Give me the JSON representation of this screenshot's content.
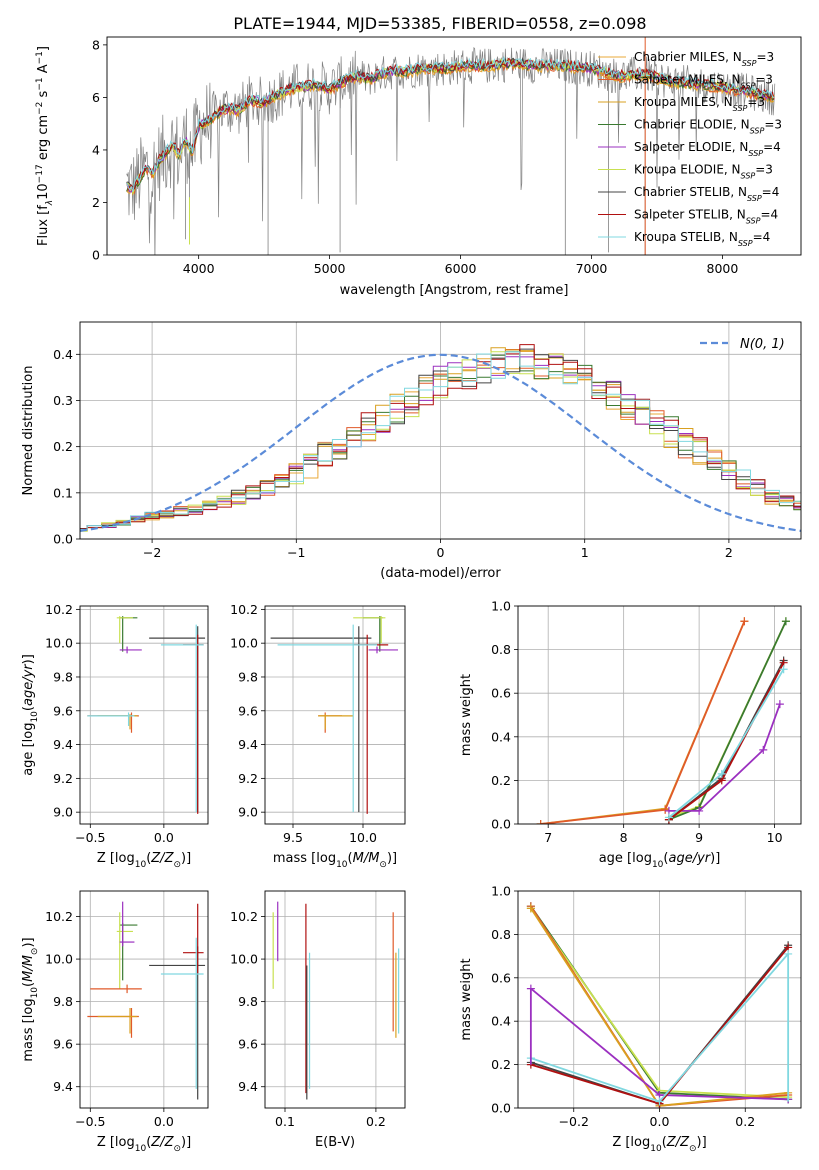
{
  "title": "PLATE=1944, MJD=53385, FIBERID=0558, z=0.098",
  "colors": {
    "Chabrier MILES": "#e8a838",
    "Salpeter MILES": "#e05a2a",
    "Kroupa MILES": "#d9a020",
    "Chabrier ELODIE": "#3a7a30",
    "Salpeter ELODIE": "#9b30c0",
    "Kroupa ELODIE": "#c8e050",
    "Chabrier STELIB": "#444444",
    "Salpeter STELIB": "#b01010",
    "Kroupa STELIB": "#80d8e0",
    "normal_curve": "#5b8bd8",
    "observed": "#808080"
  },
  "models": [
    {
      "name": "Chabrier MILES",
      "label": "Chabrier MILES, N",
      "nssp": "3"
    },
    {
      "name": "Salpeter MILES",
      "label": "Salpeter MILES, N",
      "nssp": "3"
    },
    {
      "name": "Kroupa MILES",
      "label": "Kroupa MILES, N",
      "nssp": "3"
    },
    {
      "name": "Chabrier ELODIE",
      "label": "Chabrier ELODIE, N",
      "nssp": "3"
    },
    {
      "name": "Salpeter ELODIE",
      "label": "Salpeter ELODIE, N",
      "nssp": "4"
    },
    {
      "name": "Kroupa ELODIE",
      "label": "Kroupa ELODIE, N",
      "nssp": "3"
    },
    {
      "name": "Chabrier STELIB",
      "label": "Chabrier STELIB, N",
      "nssp": "4"
    },
    {
      "name": "Salpeter STELIB",
      "label": "Salpeter STELIB, N",
      "nssp": "4"
    },
    {
      "name": "Kroupa STELIB",
      "label": "Kroupa STELIB, N",
      "nssp": "4"
    }
  ],
  "chart_data": [
    {
      "type": "line",
      "id": "spectrum",
      "xlabel": "wavelength [Angstrom, rest frame]",
      "ylabel": "Flux [f",
      "xlim": [
        3300,
        8600
      ],
      "ylim": [
        0,
        8.3
      ],
      "xticks": [
        4000,
        5000,
        6000,
        7000,
        8000
      ],
      "yticks": [
        0,
        2,
        4,
        6,
        8
      ],
      "model_curve": {
        "x": [
          3450,
          3500,
          3550,
          3600,
          3650,
          3700,
          3750,
          3800,
          3850,
          3900,
          3950,
          4000,
          4100,
          4200,
          4300,
          4400,
          4500,
          4600,
          4700,
          4800,
          4900,
          5000,
          5100,
          5200,
          5300,
          5400,
          5500,
          5600,
          5700,
          5800,
          5900,
          6000,
          6200,
          6400,
          6600,
          6800,
          7000,
          7200,
          7400,
          7600,
          7800,
          8000,
          8200,
          8400
        ],
        "y": [
          2.6,
          2.5,
          2.9,
          3.3,
          3.1,
          3.6,
          3.9,
          4.2,
          3.8,
          4.4,
          3.9,
          4.9,
          5.2,
          5.6,
          5.5,
          5.9,
          5.8,
          6.1,
          6.3,
          6.4,
          6.5,
          6.3,
          6.6,
          6.8,
          6.7,
          6.9,
          7.0,
          7.0,
          7.1,
          7.1,
          7.1,
          7.2,
          7.2,
          7.3,
          7.2,
          7.2,
          7.1,
          6.8,
          6.9,
          6.6,
          6.5,
          6.4,
          6.2,
          6.0
        ]
      }
    },
    {
      "type": "line",
      "id": "residuals",
      "xlabel": "(data-model)/error",
      "ylabel": "Normed distribution",
      "xlim": [
        -2.5,
        2.5
      ],
      "ylim": [
        0,
        0.47
      ],
      "xticks": [
        -2,
        -1,
        0,
        1,
        2
      ],
      "yticks": [
        0.0,
        0.1,
        0.2,
        0.3,
        0.4
      ],
      "legend": "N(0, 1)",
      "histogram_bin_width": 0.1,
      "histogram_envelope": [
        0.02,
        0.025,
        0.03,
        0.035,
        0.045,
        0.05,
        0.055,
        0.06,
        0.065,
        0.07,
        0.08,
        0.09,
        0.1,
        0.11,
        0.13,
        0.14,
        0.16,
        0.18,
        0.2,
        0.22,
        0.24,
        0.26,
        0.28,
        0.3,
        0.32,
        0.34,
        0.35,
        0.36,
        0.37,
        0.38,
        0.39,
        0.39,
        0.38,
        0.37,
        0.36,
        0.35,
        0.33,
        0.31,
        0.29,
        0.27,
        0.25,
        0.23,
        0.21,
        0.19,
        0.17,
        0.15,
        0.13,
        0.11,
        0.09,
        0.08,
        0.07
      ]
    },
    {
      "type": "scatter",
      "id": "age-vs-Z",
      "xlabel": "Z [log",
      "ylabel": "age  [log",
      "xlim": [
        -0.57,
        0.3
      ],
      "ylim": [
        8.93,
        10.22
      ],
      "xticks": [
        -0.5,
        0.0
      ],
      "yticks": [
        9.0,
        9.2,
        9.4,
        9.6,
        9.8,
        10.0,
        10.2
      ],
      "errorbars": [
        {
          "model": "Salpeter MILES",
          "x": -0.22,
          "y": 9.57,
          "xerr": [
            0.3,
            0.05
          ],
          "yerr": [
            0.1,
            0.02
          ]
        },
        {
          "model": "Kroupa MILES",
          "x": -0.23,
          "y": 9.57,
          "xerr": [
            0.22,
            0.05
          ],
          "yerr": [
            0.08,
            0.01
          ]
        },
        {
          "model": "Kroupa STELIB",
          "x": -0.24,
          "y": 9.57,
          "xerr": [
            0.28,
            0.04
          ],
          "yerr": [
            0.06,
            0.02
          ]
        },
        {
          "model": "Chabrier ELODIE",
          "x": -0.28,
          "y": 10.15,
          "xerr": [
            0.02,
            0.1
          ],
          "yerr": [
            0.2,
            0.01
          ]
        },
        {
          "model": "Kroupa ELODIE",
          "x": -0.3,
          "y": 10.15,
          "xerr": [
            0.02,
            0.09
          ],
          "yerr": [
            0.15,
            0.01
          ]
        },
        {
          "model": "Salpeter ELODIE",
          "x": -0.25,
          "y": 9.96,
          "xerr": [
            0.05,
            0.1
          ],
          "yerr": [
            0.02,
            0.02
          ]
        },
        {
          "model": "Chabrier STELIB",
          "x": 0.23,
          "y": 10.03,
          "xerr": [
            0.33,
            0.05
          ],
          "yerr": [
            1.03,
            0.07
          ]
        },
        {
          "model": "Salpeter STELIB",
          "x": 0.23,
          "y": 9.99,
          "xerr": [
            0.1,
            0.04
          ],
          "yerr": [
            1.0,
            0.06
          ]
        },
        {
          "model": "Kroupa STELIB",
          "x": 0.22,
          "y": 9.99,
          "xerr": [
            0.24,
            0.05
          ],
          "yerr": [
            0.99,
            0.12
          ]
        }
      ]
    },
    {
      "type": "scatter",
      "id": "age-vs-mass",
      "xlabel": "mass [log",
      "ylabel": "",
      "xlim": [
        9.3,
        10.3
      ],
      "ylim": [
        8.93,
        10.22
      ],
      "xticks": [
        9.5,
        10.0
      ],
      "yticks": [
        9.0,
        9.2,
        9.4,
        9.6,
        9.8,
        10.0,
        10.2
      ],
      "errorbars": [
        {
          "model": "Salpeter MILES",
          "x": 9.73,
          "y": 9.57,
          "xerr": [
            0.05,
            0.12
          ],
          "yerr": [
            0.1,
            0.02
          ]
        },
        {
          "model": "Kroupa MILES",
          "x": 9.73,
          "y": 9.57,
          "xerr": [
            0.05,
            0.2
          ],
          "yerr": [
            0.08,
            0.01
          ]
        },
        {
          "model": "Chabrier ELODIE",
          "x": 10.12,
          "y": 10.15,
          "xerr": [
            0.12,
            0.02
          ],
          "yerr": [
            0.2,
            0.01
          ]
        },
        {
          "model": "Kroupa ELODIE",
          "x": 10.13,
          "y": 10.15,
          "xerr": [
            0.2,
            0.03
          ],
          "yerr": [
            0.15,
            0.01
          ]
        },
        {
          "model": "Salpeter ELODIE",
          "x": 10.1,
          "y": 9.96,
          "xerr": [
            0.06,
            0.15
          ],
          "yerr": [
            0.02,
            0.02
          ]
        },
        {
          "model": "Chabrier STELIB",
          "x": 9.97,
          "y": 10.03,
          "xerr": [
            0.63,
            0.09
          ],
          "yerr": [
            1.03,
            0.07
          ]
        },
        {
          "model": "Salpeter STELIB",
          "x": 10.03,
          "y": 9.99,
          "xerr": [
            0.1,
            0.15
          ],
          "yerr": [
            1.0,
            0.06
          ]
        },
        {
          "model": "Kroupa STELIB",
          "x": 9.93,
          "y": 9.99,
          "xerr": [
            0.54,
            0.17
          ],
          "yerr": [
            0.99,
            0.12
          ]
        }
      ]
    },
    {
      "type": "line",
      "id": "mass-weight-vs-age",
      "xlabel": "age  [log",
      "ylabel": "mass weight",
      "xlim": [
        6.6,
        10.35
      ],
      "ylim": [
        0,
        1.0
      ],
      "xticks": [
        7,
        8,
        9,
        10
      ],
      "yticks": [
        0.0,
        0.2,
        0.4,
        0.6,
        0.8,
        1.0
      ],
      "series": [
        {
          "model": "Kroupa MILES",
          "x": [
            6.9,
            8.55,
            9.6
          ],
          "y": [
            0.0,
            0.07,
            0.93
          ]
        },
        {
          "model": "Salpeter MILES",
          "x": [
            6.9,
            8.55,
            9.6
          ],
          "y": [
            0.0,
            0.065,
            0.93
          ]
        },
        {
          "model": "Kroupa ELODIE",
          "x": [
            8.6,
            9.0,
            10.15
          ],
          "y": [
            0.03,
            0.08,
            0.93
          ]
        },
        {
          "model": "Chabrier ELODIE",
          "x": [
            8.6,
            9.0,
            10.15
          ],
          "y": [
            0.02,
            0.075,
            0.93
          ]
        },
        {
          "model": "Salpeter ELODIE",
          "x": [
            8.6,
            9.0,
            9.85,
            10.07
          ],
          "y": [
            0.06,
            0.06,
            0.34,
            0.55
          ]
        },
        {
          "model": "Chabrier STELIB",
          "x": [
            8.6,
            9.3,
            10.12
          ],
          "y": [
            0.02,
            0.21,
            0.75
          ]
        },
        {
          "model": "Salpeter STELIB",
          "x": [
            8.6,
            9.3,
            10.12
          ],
          "y": [
            0.02,
            0.2,
            0.74
          ]
        },
        {
          "model": "Kroupa STELIB",
          "x": [
            8.6,
            9.3,
            10.12
          ],
          "y": [
            0.03,
            0.23,
            0.71
          ]
        }
      ]
    },
    {
      "type": "scatter",
      "id": "mass-vs-Z",
      "xlabel": "Z [log",
      "ylabel": "mass [log",
      "xlim": [
        -0.57,
        0.3
      ],
      "ylim": [
        9.3,
        10.32
      ],
      "xticks": [
        -0.5,
        0.0
      ],
      "yticks": [
        9.4,
        9.6,
        9.8,
        10.0,
        10.2
      ],
      "errorbars": [
        {
          "model": "Salpeter MILES",
          "x": -0.22,
          "y": 9.73,
          "xerr": [
            0.3,
            0.05
          ],
          "yerr": [
            0.1,
            0.04
          ]
        },
        {
          "model": "Kroupa MILES",
          "x": -0.23,
          "y": 9.73,
          "xerr": [
            0.22,
            0.05
          ],
          "yerr": [
            0.08,
            0.04
          ]
        },
        {
          "model": "Chabrier ELODIE",
          "x": -0.28,
          "y": 10.16,
          "xerr": [
            0.02,
            0.1
          ],
          "yerr": [
            0.26,
            0.01
          ]
        },
        {
          "model": "Kroupa ELODIE",
          "x": -0.3,
          "y": 10.13,
          "xerr": [
            0.02,
            0.09
          ],
          "yerr": [
            0.27,
            0.09
          ]
        },
        {
          "model": "Salpeter ELODIE",
          "x": -0.28,
          "y": 10.08,
          "xerr": [
            0.02,
            0.08
          ],
          "yerr": [
            0.02,
            0.19
          ]
        },
        {
          "model": "Salpeter MILES",
          "x": -0.25,
          "y": 9.86,
          "xerr": [
            0.25,
            0.1
          ],
          "yerr": [
            0.02,
            0.02
          ]
        },
        {
          "model": "Chabrier STELIB",
          "x": 0.23,
          "y": 9.97,
          "xerr": [
            0.33,
            0.05
          ],
          "yerr": [
            0.63,
            0.09
          ]
        },
        {
          "model": "Salpeter STELIB",
          "x": 0.23,
          "y": 10.03,
          "xerr": [
            0.1,
            0.04
          ],
          "yerr": [
            0.1,
            0.23
          ]
        },
        {
          "model": "Kroupa STELIB",
          "x": 0.22,
          "y": 9.93,
          "xerr": [
            0.24,
            0.05
          ],
          "yerr": [
            0.54,
            0.17
          ]
        }
      ]
    },
    {
      "type": "scatter",
      "id": "mass-vs-ebv",
      "xlabel": "E(B-V)",
      "ylabel": "",
      "xlim": [
        0.078,
        0.232
      ],
      "ylim": [
        9.3,
        10.32
      ],
      "xticks": [
        0.1,
        0.2
      ],
      "yticks": [
        9.4,
        9.6,
        9.8,
        10.0,
        10.2
      ],
      "errorbars": [
        {
          "model": "Kroupa ELODIE",
          "x": 0.087,
          "y": 10.13,
          "xerr": [
            0.0,
            0.0
          ],
          "yerr": [
            0.27,
            0.09
          ]
        },
        {
          "model": "Salpeter ELODIE",
          "x": 0.092,
          "y": 10.08,
          "xerr": [
            0.0,
            0.0
          ],
          "yerr": [
            0.09,
            0.19
          ]
        },
        {
          "model": "Salpeter STELIB",
          "x": 0.123,
          "y": 10.03,
          "xerr": [
            0.0,
            0.0
          ],
          "yerr": [
            0.66,
            0.23
          ]
        },
        {
          "model": "Chabrier STELIB",
          "x": 0.124,
          "y": 9.97,
          "xerr": [
            0.0,
            0.0
          ],
          "yerr": [
            0.63,
            0.0
          ]
        },
        {
          "model": "Kroupa STELIB",
          "x": 0.127,
          "y": 9.93,
          "xerr": [
            0.0,
            0.0
          ],
          "yerr": [
            0.54,
            0.1
          ]
        },
        {
          "model": "Salpeter MILES",
          "x": 0.219,
          "y": 9.86,
          "xerr": [
            0.0,
            0.0
          ],
          "yerr": [
            0.2,
            0.36
          ]
        },
        {
          "model": "Kroupa MILES",
          "x": 0.222,
          "y": 9.73,
          "xerr": [
            0.0,
            0.0
          ],
          "yerr": [
            0.1,
            0.3
          ]
        },
        {
          "model": "Kroupa STELIB",
          "x": 0.225,
          "y": 9.85,
          "xerr": [
            0.0,
            0.0
          ],
          "yerr": [
            0.2,
            0.2
          ]
        }
      ]
    },
    {
      "type": "line",
      "id": "mass-weight-vs-Z",
      "xlabel": "Z [log",
      "ylabel": "mass weight",
      "xlim": [
        -0.33,
        0.33
      ],
      "ylim": [
        0,
        1.0
      ],
      "xticks": [
        -0.2,
        0.0,
        0.2
      ],
      "yticks": [
        0.0,
        0.2,
        0.4,
        0.6,
        0.8,
        1.0
      ],
      "series": [
        {
          "model": "Chabrier ELODIE",
          "x": [
            -0.3,
            0.0,
            0.3
          ],
          "y": [
            0.93,
            0.07,
            0.04
          ]
        },
        {
          "model": "Kroupa ELODIE",
          "x": [
            -0.3,
            0.0,
            0.3
          ],
          "y": [
            0.92,
            0.08,
            0.05
          ]
        },
        {
          "model": "Salpeter MILES",
          "x": [
            -0.3,
            0.0,
            0.3
          ],
          "y": [
            0.93,
            0.01,
            0.06
          ]
        },
        {
          "model": "Kroupa MILES",
          "x": [
            -0.3,
            0.0,
            0.3
          ],
          "y": [
            0.92,
            0.01,
            0.07
          ]
        },
        {
          "model": "Salpeter ELODIE",
          "x": [
            -0.3,
            0.0,
            0.3
          ],
          "y": [
            0.55,
            0.06,
            0.04
          ]
        },
        {
          "model": "Chabrier STELIB",
          "x": [
            -0.3,
            0.0,
            0.3
          ],
          "y": [
            0.21,
            0.02,
            0.75
          ]
        },
        {
          "model": "Salpeter STELIB",
          "x": [
            -0.3,
            0.0,
            0.3
          ],
          "y": [
            0.2,
            0.02,
            0.74
          ]
        },
        {
          "model": "Kroupa STELIB",
          "x": [
            -0.3,
            0.0,
            0.3
          ],
          "y": [
            0.23,
            0.03,
            0.71
          ]
        }
      ]
    }
  ]
}
